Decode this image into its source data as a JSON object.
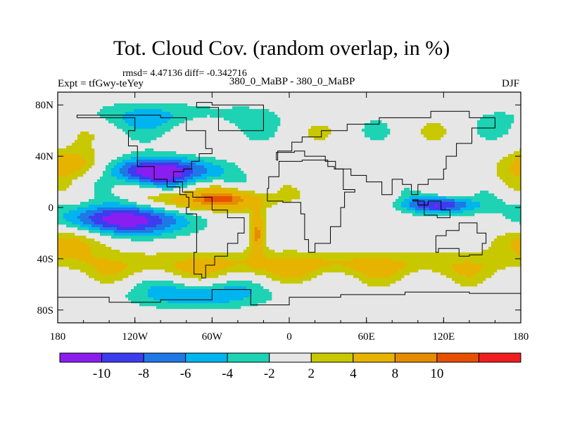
{
  "header": {
    "title": "Tot. Cloud Cov. (random overlap, in %)",
    "stats": "rmsd= 4.47136 diff= -0.342716",
    "experiment": "Expt = tfGwy-teYey",
    "comparison": "380_0_MaBP - 380_0_MaBP",
    "season": "DJF"
  },
  "colors": {
    "neutral": "#e6e6e6",
    "landline": "#000000",
    "levels": [
      "#8a1ef0",
      "#3c3cf0",
      "#1e78e6",
      "#00b4f0",
      "#1ed2b4",
      "#e6e6e6",
      "#c8c800",
      "#e6b400",
      "#e68c00",
      "#e65000",
      "#f01e1e"
    ]
  },
  "chart_data": {
    "type": "heatmap",
    "title": "Tot. Cloud Cov. (random overlap, in %)",
    "xlabel": "",
    "ylabel": "",
    "xlim": [
      -180,
      180
    ],
    "ylim": [
      -90,
      90
    ],
    "x_ticks": [
      -180,
      -120,
      -60,
      0,
      60,
      120,
      180
    ],
    "x_tick_labels": [
      "180",
      "120W",
      "60W",
      "0",
      "60E",
      "120E",
      "180"
    ],
    "y_ticks": [
      80,
      40,
      0,
      -40,
      -80
    ],
    "y_tick_labels": [
      "80N",
      "40N",
      "0",
      "40S",
      "80S"
    ],
    "colorbar": {
      "levels": [
        -10,
        -8,
        -6,
        -4,
        -2,
        2,
        4,
        8,
        10
      ],
      "labels": [
        "-10",
        "-8",
        "-6",
        "-4",
        "-2",
        "2",
        "4",
        "8",
        "10"
      ]
    },
    "features": [
      {
        "name": "Central N Pacific minimum",
        "lon": -100,
        "lat": 28,
        "value": -12,
        "width": 32,
        "height": 8
      },
      {
        "name": "Subtropical S Pacific minimum",
        "lon": -130,
        "lat": -10,
        "value": -12,
        "width": 36,
        "height": 9
      },
      {
        "name": "Indian Ocean minimum",
        "lon": 117,
        "lat": 2,
        "value": -10,
        "width": 22,
        "height": 5
      },
      {
        "name": "Tropical Atlantic maximum",
        "lon": -60,
        "lat": 6,
        "value": 11,
        "width": 30,
        "height": 6
      },
      {
        "name": "S Atlantic convergence maximum",
        "lon": -25,
        "lat": -20,
        "value": 9,
        "width": 4,
        "height": 12
      },
      {
        "name": "N Pacific subtropical maximum",
        "lon": -170,
        "lat": 32,
        "value": 7,
        "width": 18,
        "height": 9
      },
      {
        "name": "Eastern Pacific maximum",
        "lon": -170,
        "lat": -25,
        "value": 6,
        "width": 22,
        "height": 10
      },
      {
        "name": "Southern Ocean band",
        "lon": 0,
        "lat": -45,
        "value": 5,
        "width": 160,
        "height": 8
      },
      {
        "name": "Arctic minimum",
        "lon": -100,
        "lat": 72,
        "value": -4,
        "width": 60,
        "height": 8
      },
      {
        "name": "Antarctic minimum",
        "lon": -70,
        "lat": -68,
        "value": -6,
        "width": 40,
        "height": 8
      }
    ]
  }
}
